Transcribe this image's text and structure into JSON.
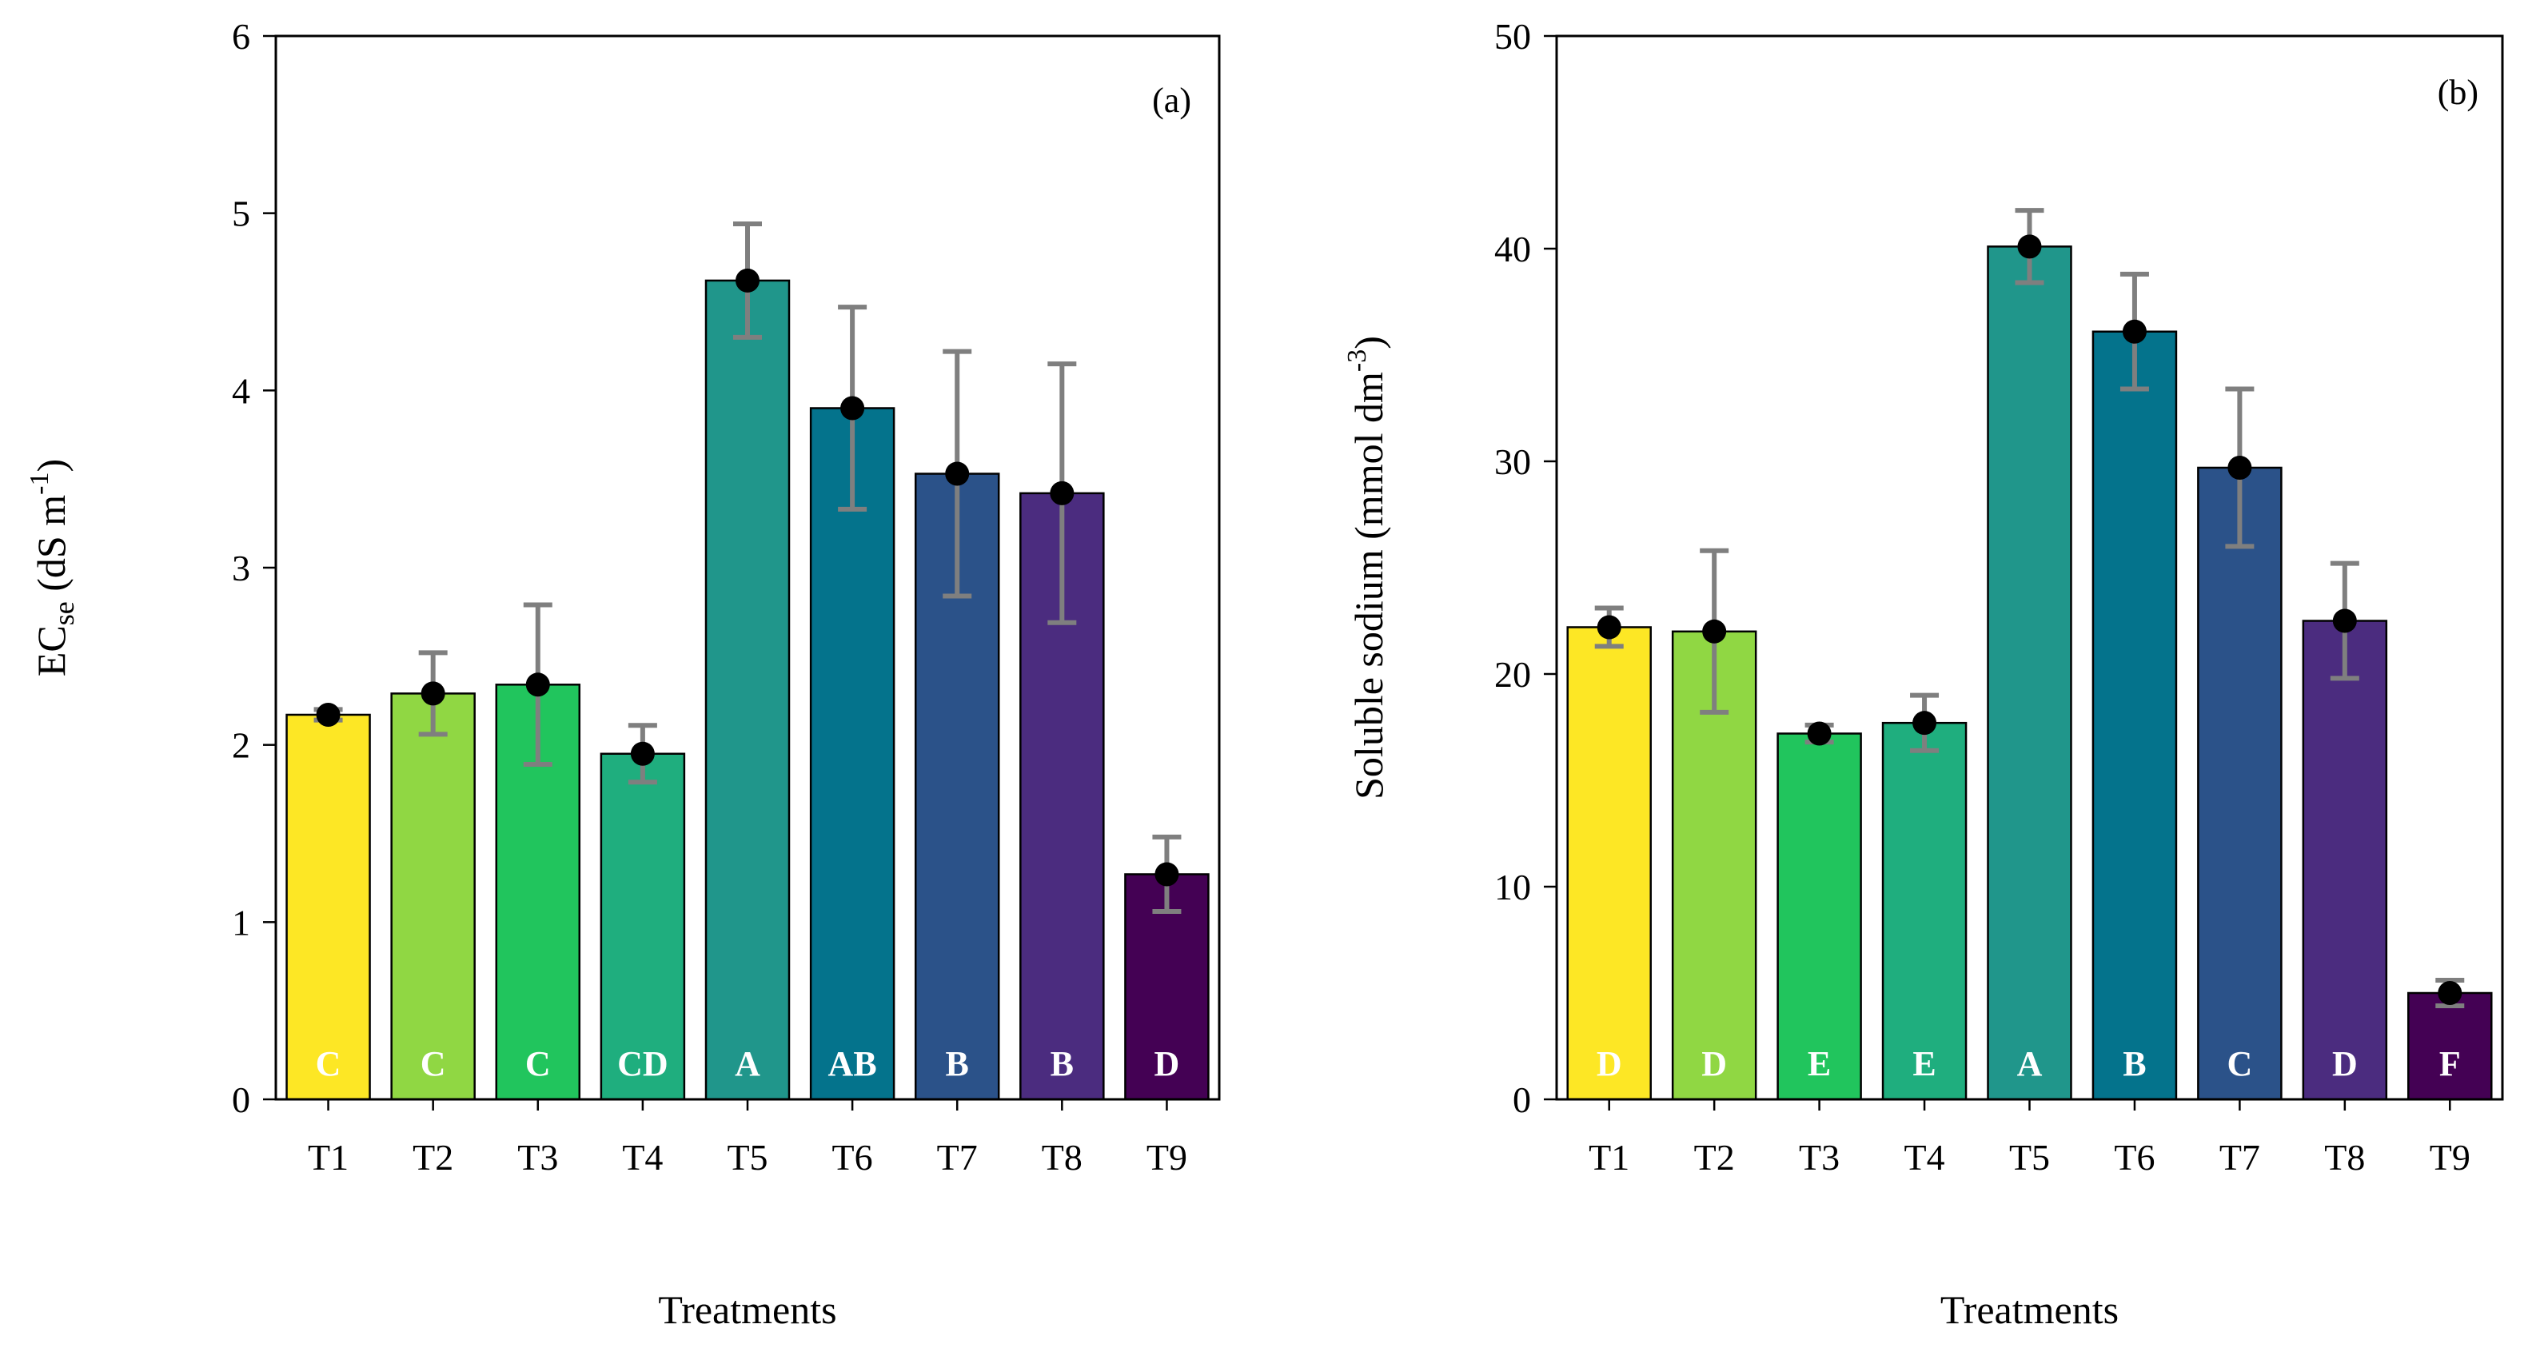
{
  "chart_data": [
    {
      "type": "bar",
      "panel_label": "(a)",
      "categories": [
        "T1",
        "T2",
        "T3",
        "T4",
        "T5",
        "T6",
        "T7",
        "T8",
        "T9"
      ],
      "values": [
        2.17,
        2.29,
        2.34,
        1.95,
        4.62,
        3.9,
        3.53,
        3.42,
        1.27
      ],
      "errors": [
        0.03,
        0.23,
        0.45,
        0.16,
        0.32,
        0.57,
        0.69,
        0.73,
        0.21
      ],
      "letters": [
        "C",
        "C",
        "C",
        "CD",
        "A",
        "AB",
        "B",
        "B",
        "D"
      ],
      "colors": [
        "#FDE725",
        "#90D743",
        "#21C55D",
        "#1FAE7E",
        "#20968B",
        "#04738C",
        "#2B5289",
        "#4B2C7F",
        "#440154"
      ],
      "xlabel": "Treatments",
      "ylabel": {
        "main": "EC",
        "sub": "se",
        "units_pre": " (dS m",
        "sup": "-1",
        "units_post": ")"
      },
      "ylim": [
        0,
        6
      ],
      "yticks": [
        0,
        1,
        2,
        3,
        4,
        5,
        6
      ],
      "ytick_labels": [
        "0",
        "1",
        "2",
        "3",
        "4",
        "5",
        "6"
      ]
    },
    {
      "type": "bar",
      "panel_label": "(b)",
      "categories": [
        "T1",
        "T2",
        "T3",
        "T4",
        "T5",
        "T6",
        "T7",
        "T8",
        "T9"
      ],
      "values": [
        22.2,
        22.0,
        17.2,
        17.7,
        40.1,
        36.1,
        29.7,
        22.5,
        5.0
      ],
      "errors": [
        0.9,
        3.8,
        0.4,
        1.3,
        1.7,
        2.7,
        3.7,
        2.7,
        0.6
      ],
      "letters": [
        "D",
        "D",
        "E",
        "E",
        "A",
        "B",
        "C",
        "D",
        "F"
      ],
      "colors": [
        "#FDE725",
        "#90D743",
        "#21C55D",
        "#1FAE7E",
        "#20968B",
        "#04738C",
        "#2B5289",
        "#4B2C7F",
        "#440154"
      ],
      "xlabel": "Treatments",
      "ylabel": {
        "main": "Soluble sodium",
        "sub": "",
        "units_pre": " (mmol dm",
        "sup": "-3",
        "units_post": ")"
      },
      "ylim": [
        0,
        50
      ],
      "yticks": [
        0,
        10,
        20,
        30,
        40,
        50
      ],
      "ytick_labels": [
        "0",
        "10",
        "20",
        "30",
        "40",
        "50"
      ]
    }
  ]
}
